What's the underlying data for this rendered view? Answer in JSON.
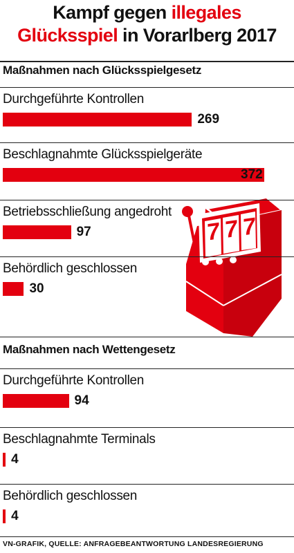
{
  "title": {
    "part1": "Kampf gegen ",
    "highlight1": "illegales",
    "highlight2": "Glücksspiel",
    "part2": " in Vorarlberg 2017"
  },
  "colors": {
    "accent": "#e3000f",
    "text": "#111111"
  },
  "illustration": {
    "icon": "slot-machine-icon",
    "reels": [
      "7",
      "7",
      "7"
    ]
  },
  "chart_data": [
    {
      "type": "bar",
      "title": "Maßnahmen nach Glücksspielgesetz",
      "categories": [
        "Durchgeführte Kontrollen",
        "Beschlagnahmte Glücksspielgeräte",
        "Betriebsschließung angedroht",
        "Behördlich geschlossen"
      ],
      "values": [
        269,
        372,
        97,
        30
      ]
    },
    {
      "type": "bar",
      "title": "Maßnahmen nach Wettengesetz",
      "categories": [
        "Durchgeführte Kontrollen",
        "Beschlagnahmte Terminals",
        "Behördlich geschlossen"
      ],
      "values": [
        94,
        4,
        4
      ]
    }
  ],
  "footer": "VN-GRAFIK, QUELLE: ANFRAGEBEANTWORTUNG LANDESREGIERUNG"
}
